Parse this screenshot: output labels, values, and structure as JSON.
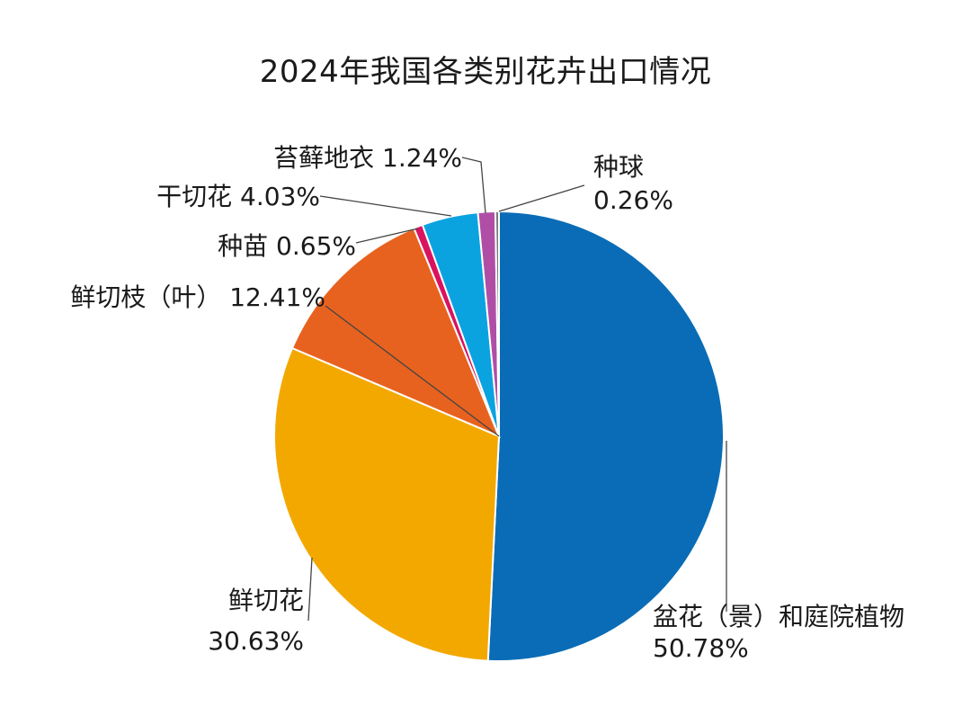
{
  "chart_data": {
    "type": "pie",
    "title": "2024年我国各类别花卉出口情况",
    "slices": [
      {
        "name": "盆花（景）和庭院植物",
        "value": 50.78,
        "label": "50.78%",
        "color": "#0a6cb6"
      },
      {
        "name": "鲜切花",
        "value": 30.63,
        "label": "30.63%",
        "color": "#f3a800"
      },
      {
        "name": "鲜切枝（叶）",
        "value": 12.41,
        "label": "12.41%",
        "color": "#e8621f"
      },
      {
        "name": "种苗",
        "value": 0.65,
        "label": "0.65%",
        "color": "#d9135f"
      },
      {
        "name": "干切花",
        "value": 4.03,
        "label": "4.03%",
        "color": "#0aa3e0"
      },
      {
        "name": "苔藓地衣",
        "value": 1.24,
        "label": "1.24%",
        "color": "#b04ea6"
      },
      {
        "name": "种球",
        "value": 0.26,
        "label": "0.26%",
        "color": "#7a7a7a"
      }
    ]
  }
}
